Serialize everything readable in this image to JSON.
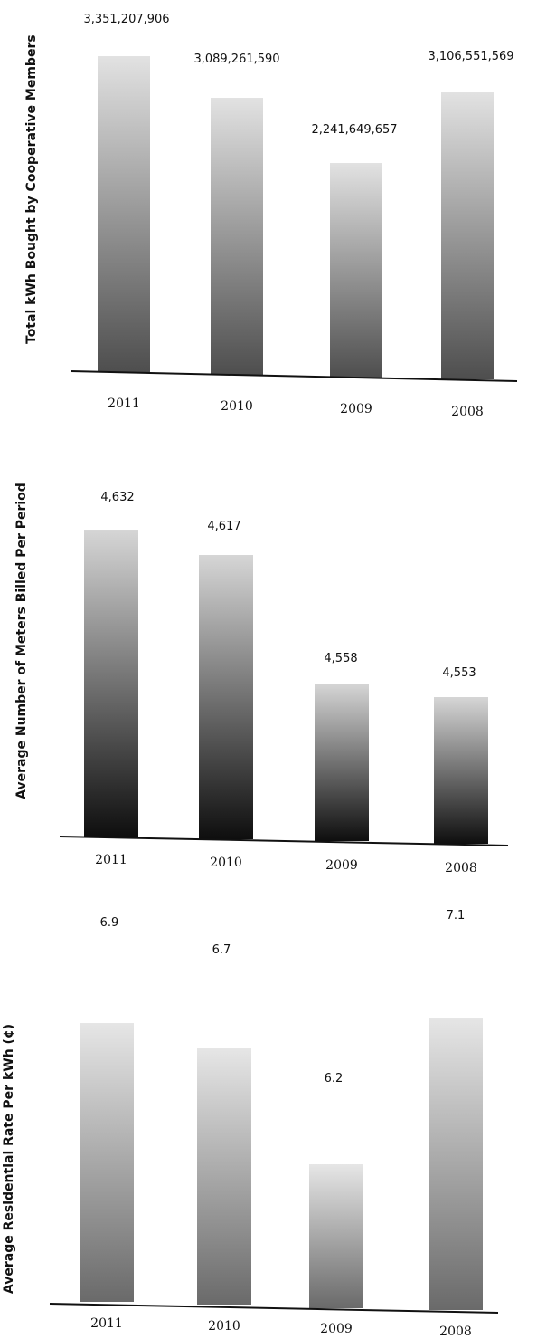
{
  "chart_data": [
    {
      "type": "bar",
      "title": "",
      "xlabel": "",
      "ylabel": "Total kWh Bought by Cooperative Members",
      "categories": [
        "2011",
        "2010",
        "2009",
        "2008"
      ],
      "values": [
        3351207906,
        3089261590,
        2241649657,
        3106551569
      ],
      "value_labels": [
        "3,351,207,906",
        "3,089,261,590",
        "2,241,649,657",
        "3,106,551,569"
      ],
      "grid": false,
      "legend": "none"
    },
    {
      "type": "bar",
      "title": "",
      "xlabel": "",
      "ylabel": "Average Number of Meters Billed Per Period",
      "categories": [
        "2011",
        "2010",
        "2009",
        "2008"
      ],
      "values": [
        4632,
        4617,
        4558,
        4553
      ],
      "value_labels": [
        "4,632",
        "4,617",
        "4,558",
        "4,553"
      ],
      "grid": false,
      "legend": "none"
    },
    {
      "type": "bar",
      "title": "",
      "xlabel": "",
      "ylabel": "Average Residential Rate Per kWh (¢)",
      "categories": [
        "2011",
        "2010",
        "2009",
        "2008"
      ],
      "values": [
        6.9,
        6.7,
        6.2,
        7.1
      ],
      "value_labels": [
        "6.9",
        "6.7",
        "6.2",
        "7.1"
      ],
      "grid": false,
      "legend": "none"
    }
  ],
  "colors": {
    "chart1_bar_top": "#e2e2e2",
    "chart1_bar_bottom": "#4e4e4e",
    "chart2_bar_top": "#d6d6d6",
    "chart2_bar_bottom": "#0e0e0e",
    "chart3_bar_top": "#e6e6e6",
    "chart3_bar_bottom": "#6a6a6a",
    "axis": "#111111"
  }
}
